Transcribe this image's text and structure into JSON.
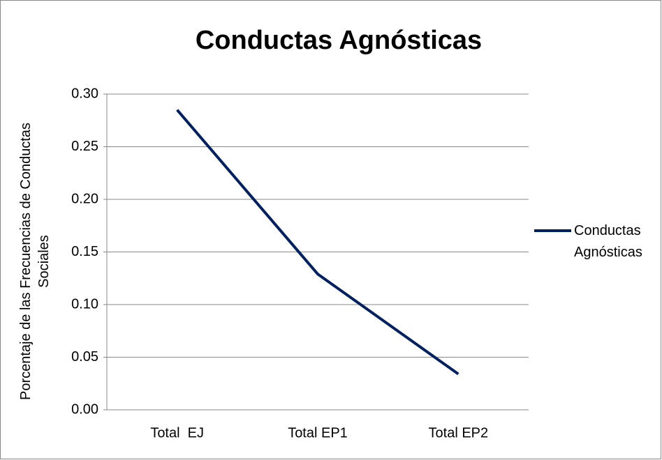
{
  "chart_data": {
    "type": "line",
    "title": "Conductas Agnósticas",
    "ylabel": "Porcentaje de las Frecuencias de Conductas Sociales",
    "categories": [
      "Total  EJ",
      "Total EP1",
      "Total EP2"
    ],
    "series": [
      {
        "name": "Conductas Agnósticas",
        "color": "#002060",
        "values": [
          0.285,
          0.129,
          0.034
        ]
      }
    ],
    "ylim": [
      0,
      0.3
    ],
    "yticks": [
      {
        "value": 0,
        "label": "0.00"
      },
      {
        "value": 0.05,
        "label": "0.05"
      },
      {
        "value": 0.1,
        "label": "0.10"
      },
      {
        "value": 0.15,
        "label": "0.15"
      },
      {
        "value": 0.2,
        "label": "0.20"
      },
      {
        "value": 0.25,
        "label": "0.25"
      },
      {
        "value": 0.3,
        "label": "0.30"
      }
    ],
    "grid": true,
    "legend": "right"
  }
}
